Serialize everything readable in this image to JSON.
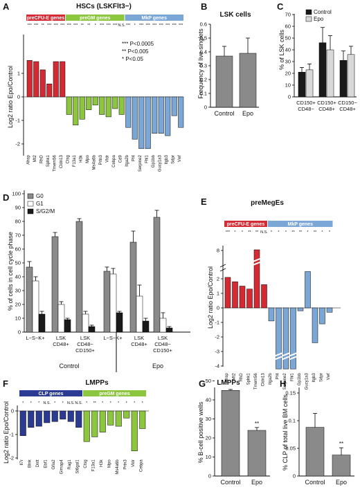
{
  "colors": {
    "red": "#d42a33",
    "green": "#8cc63f",
    "blue": "#7ba7d7",
    "navy": "#2b3a93",
    "gray": "#8a8a8a",
    "dark": "#1a1a1a",
    "light": "#d9d9d9"
  },
  "panels": {
    "A": {
      "letter": "A",
      "title": "HSCs (LSKFlt3−)",
      "ylabel": "Log2 ratio Epo/Control",
      "ticks": [
        "1",
        "0",
        "-1",
        "-2"
      ],
      "groups": [
        "preCFU-E genes",
        "preGM genes",
        "MkP genes"
      ],
      "legend": [
        "*** P<0.0005",
        "** P<0.005",
        "* P<0.05"
      ]
    },
    "B": {
      "letter": "B",
      "title": "LSK cells",
      "ylabel": "Frequency of live singlets",
      "ticks": [
        "0",
        "0.1",
        "0.2",
        "0.3",
        "0.4",
        "0.5",
        "0.6"
      ]
    },
    "C": {
      "letter": "C",
      "ylabel": "% of LSK cells",
      "ticks": [
        "0",
        "10",
        "20",
        "30",
        "40",
        "50",
        "60",
        "70"
      ],
      "legend": [
        "Control",
        "Epo"
      ]
    },
    "D": {
      "letter": "D",
      "ylabel": "% of cells in cell cycle phase",
      "ticks": [
        "0",
        "10",
        "20",
        "30",
        "40",
        "50",
        "60",
        "70",
        "80",
        "90",
        "100"
      ],
      "legend": [
        "G0",
        "G1",
        "S/G2/M"
      ],
      "groups": [
        "Control",
        "Epo"
      ]
    },
    "E": {
      "letter": "E",
      "title": "preMegEs",
      "ylabel": "Log2 ratio Epo/Control",
      "ticks": [
        "8",
        "2",
        "1",
        "0",
        "-1",
        "-2",
        "-3",
        "-4"
      ],
      "groups": [
        "preCFU-E genes",
        "MkP genes"
      ]
    },
    "F": {
      "letter": "F",
      "title": "LMPPs",
      "ylabel": "Log2 ratio Epo/Control",
      "ticks": [
        "0",
        "-1",
        "-2"
      ],
      "groups": [
        "CLP genes",
        "preGM genes"
      ]
    },
    "G": {
      "letter": "G",
      "title": "LMPPs",
      "ylabel": "% B-cell positive wells",
      "ticks": [
        "0",
        "10",
        "20",
        "30",
        "40",
        "50"
      ]
    },
    "H": {
      "letter": "H",
      "ylabel": "% CLP of total live BM cells",
      "ticks": [
        "0",
        "0.05",
        "0.1",
        "0.15"
      ]
    }
  },
  "chart_data": [
    {
      "panel": "A",
      "type": "bar",
      "title": "HSCs (LSKFlt3−)",
      "ylabel": "Log2 ratio Epo/Control",
      "ylim": [
        -2.4,
        1.9
      ],
      "categories": [
        "Ahsp",
        "Mt2",
        "RhD",
        "Sphk1",
        "Tmem56",
        "Cldn13",
        "Ctsg",
        "F13a1",
        "H3k",
        "Mpo",
        "Ms4a6b",
        "Prtn3",
        "Vldr",
        "Cebpa",
        "Cd9",
        "Itga2b",
        "Pf4",
        "Serpine2",
        "Fhl1",
        "Gp1bb",
        "Gucy1a3",
        "Itgb3",
        "Sdpr",
        "Vwf"
      ],
      "values": [
        1.55,
        1.5,
        1.15,
        0.55,
        1.5,
        1.5,
        -0.75,
        -1.2,
        -0.95,
        -0.55,
        -0.35,
        -0.75,
        -0.85,
        -0.5,
        -0.75,
        -1.3,
        -1.8,
        -2.2,
        -2.2,
        -1.55,
        -1.55,
        -1.65,
        -0.8,
        -1.3
      ],
      "significance": [
        "***",
        "***",
        "**",
        "***",
        "***",
        "***",
        "***",
        "***",
        "**",
        "**",
        "*",
        "***",
        "***",
        "***",
        "N.S.",
        "***",
        "*",
        "***",
        "***",
        "***",
        "***",
        "***",
        "***",
        "***"
      ],
      "groups": [
        {
          "name": "preCFU-E genes",
          "count": 6
        },
        {
          "name": "preGM genes",
          "count": 9
        },
        {
          "name": "MkP genes",
          "count": 9
        }
      ]
    },
    {
      "panel": "B",
      "type": "bar",
      "title": "LSK cells",
      "ylabel": "Frequency of live singlets",
      "ylim": [
        0,
        0.6
      ],
      "categories": [
        "Control",
        "Epo"
      ],
      "values": [
        0.37,
        0.39
      ],
      "errors": [
        0.07,
        0.11
      ]
    },
    {
      "panel": "C",
      "type": "bar",
      "ylabel": "% of LSK cells",
      "ylim": [
        0,
        70
      ],
      "categories": [
        "CD150+ CD48−",
        "CD150+ CD48+",
        "CD150− CD48+"
      ],
      "series": [
        {
          "name": "Control",
          "values": [
            21,
            46,
            31
          ],
          "errors": [
            4,
            13,
            8
          ]
        },
        {
          "name": "Epo",
          "values": [
            23,
            40,
            36
          ],
          "errors": [
            5,
            12,
            7
          ]
        }
      ]
    },
    {
      "panel": "D",
      "type": "bar",
      "ylabel": "% of cells in cell cycle phase",
      "ylim": [
        0,
        100
      ],
      "categories": [
        "L−S−K+",
        "LSK CD48+",
        "LSK CD48− CD150+",
        "L−S−K+",
        "LSK CD48+",
        "LSK CD48− CD150+"
      ],
      "condition": [
        "Control",
        "Control",
        "Control",
        "Epo",
        "Epo",
        "Epo"
      ],
      "series": [
        {
          "name": "G0",
          "values": [
            47,
            69,
            80,
            44,
            65,
            83
          ],
          "errors": [
            4,
            3,
            2,
            3,
            8,
            5
          ]
        },
        {
          "name": "G1",
          "values": [
            37,
            20,
            13,
            42,
            26,
            10
          ],
          "errors": [
            3,
            2,
            2,
            4,
            8,
            4
          ]
        },
        {
          "name": "S/G2/M",
          "values": [
            13,
            9,
            4,
            14,
            8,
            3
          ],
          "errors": [
            2,
            1,
            1,
            1,
            2,
            1
          ]
        }
      ]
    },
    {
      "panel": "E",
      "type": "bar",
      "title": "preMegEs",
      "ylabel": "Log2 ratio Epo/Control",
      "categories": [
        "Ahsp",
        "Mt2",
        "RhD",
        "Sphk1",
        "Tmem56",
        "Cldn13",
        "Itga2b",
        "Pf4",
        "Serpine2",
        "Fhl1",
        "Gp1bb",
        "Gucy1a3",
        "Itgb3",
        "Sdpr",
        "Vwf"
      ],
      "values": [
        2.1,
        1.8,
        1.5,
        1.3,
        8.0,
        1.6,
        -0.9,
        -6.9,
        -6.9,
        -6.8,
        -0.2,
        2.5,
        -2.4,
        -1.1,
        -0.3
      ],
      "significance": [
        "***",
        "*",
        "*",
        "**",
        "**",
        "N.S.",
        "*",
        "*",
        "*",
        "**",
        "**",
        "*",
        "**",
        "*",
        "*"
      ],
      "groups": [
        {
          "name": "preCFU-E genes",
          "count": 6
        },
        {
          "name": "MkP genes",
          "count": 9
        }
      ]
    },
    {
      "panel": "F",
      "type": "bar",
      "title": "LMPPs",
      "ylabel": "Log2 ratio Epo/Control",
      "ylim": [
        -2,
        0.2
      ],
      "categories": [
        "Il7r",
        "Blnk",
        "Dntt",
        "Ebf1",
        "Gfia2",
        "Gimap4",
        "Rag1",
        "St6gal1",
        "Ctsg",
        "F13a1",
        "H3k",
        "Mpo",
        "Ms4a6b",
        "Prtn3",
        "Vldr",
        "Cebpa"
      ],
      "values": [
        -1.05,
        -0.7,
        -0.65,
        -0.5,
        -0.45,
        -0.35,
        -0.45,
        -0.7,
        -1.3,
        -1.1,
        -0.9,
        -0.6,
        -0.65,
        -0.3,
        -1.7,
        -0.75
      ],
      "significance": [
        "*",
        "*",
        "*",
        "N.S.",
        "*",
        "*",
        "N.S.",
        "N.S.",
        "*",
        "**",
        "*",
        "*",
        "*",
        "*",
        "*",
        "*"
      ],
      "groups": [
        {
          "name": "CLP genes",
          "count": 8
        },
        {
          "name": "preGM genes",
          "count": 8
        }
      ]
    },
    {
      "panel": "G",
      "type": "bar",
      "title": "LMPPs",
      "ylabel": "% B-cell positive wells",
      "ylim": [
        0,
        50
      ],
      "categories": [
        "Control",
        "Epo"
      ],
      "values": [
        45,
        24
      ],
      "errors": [
        0.5,
        1.5
      ],
      "significance": [
        "",
        "**"
      ]
    },
    {
      "panel": "H",
      "type": "bar",
      "ylabel": "% CLP of total live BM cells",
      "ylim": [
        0,
        0.15
      ],
      "categories": [
        "Control",
        "Epo"
      ],
      "values": [
        0.088,
        0.038
      ],
      "errors": [
        0.025,
        0.013
      ],
      "significance": [
        "",
        "**"
      ]
    }
  ]
}
